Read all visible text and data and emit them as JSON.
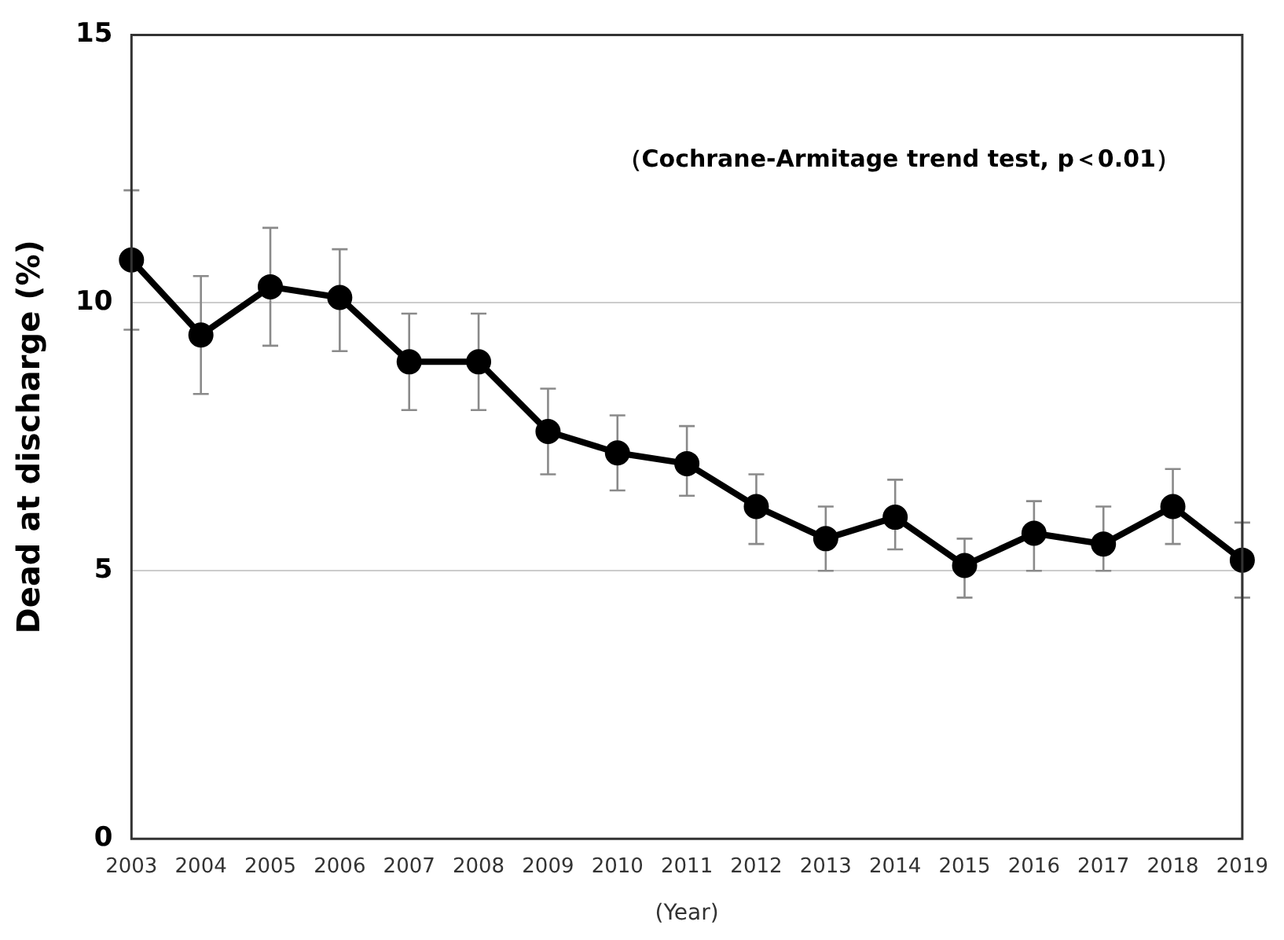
{
  "chart_data": {
    "type": "line",
    "ylabel": "Dead at discharge (%)",
    "xlabel": "(Year)",
    "categories": [
      "2003",
      "2004",
      "2005",
      "2006",
      "2007",
      "2008",
      "2009",
      "2010",
      "2011",
      "2012",
      "2013",
      "2014",
      "2015",
      "2016",
      "2017",
      "2018",
      "2019"
    ],
    "series": [
      {
        "color": "#000000",
        "values": [
          10.8,
          9.4,
          10.3,
          10.1,
          8.9,
          8.9,
          7.6,
          7.2,
          7.0,
          6.2,
          5.6,
          6.0,
          5.1,
          5.7,
          5.5,
          6.2,
          5.2
        ],
        "errors": [
          [
            9.5,
            12.1
          ],
          [
            8.3,
            10.5
          ],
          [
            9.2,
            11.4
          ],
          [
            9.1,
            11.0
          ],
          [
            8.0,
            9.8
          ],
          [
            8.0,
            9.8
          ],
          [
            6.8,
            8.4
          ],
          [
            6.5,
            7.9
          ],
          [
            6.4,
            7.7
          ],
          [
            5.5,
            6.8
          ],
          [
            5.0,
            6.2
          ],
          [
            5.4,
            6.7
          ],
          [
            4.5,
            5.6
          ],
          [
            5.0,
            6.3
          ],
          [
            5.0,
            6.2
          ],
          [
            5.5,
            6.9
          ],
          [
            4.5,
            5.9
          ]
        ]
      }
    ],
    "ylim": [
      0,
      15
    ],
    "yticks": [
      0,
      5,
      10,
      15
    ],
    "grid": "y",
    "marker": "circle",
    "line_style": "solid",
    "legend": false,
    "annotations": [
      "（Cochrane-Armitage trend test, p＜0.01）"
    ]
  }
}
